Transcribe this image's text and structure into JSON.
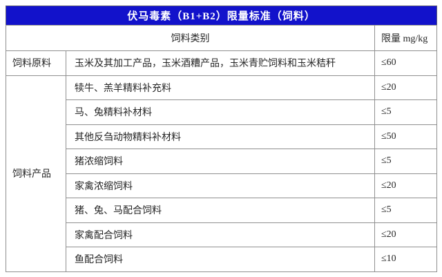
{
  "title": "伏马毒素（B1+B2）限量标准（饲料）",
  "colors": {
    "title_bg": "#1212cb",
    "title_text": "#ffffff",
    "border_inner": "#8f8f8f",
    "border_outer": "#6e6e6e",
    "body_text": "#262626"
  },
  "table": {
    "header": {
      "category": "饲料类别",
      "limit": "限量 mg/kg"
    },
    "groups": [
      {
        "group": "饲料原料",
        "rows": [
          {
            "item": "玉米及其加工产品，玉米酒糟产品，玉米青贮饲料和玉米秸秆",
            "limit": "≤60"
          }
        ]
      },
      {
        "group": "饲料产品",
        "rows": [
          {
            "item": "犊牛、羔羊精料补充料",
            "limit": "≤20"
          },
          {
            "item": "马、兔精料补材料",
            "limit": "≤5"
          },
          {
            "item": "其他反刍动物精料补材料",
            "limit": "≤50"
          },
          {
            "item": "猪浓缩饲料",
            "limit": "≤5"
          },
          {
            "item": "家禽浓缩饲料",
            "limit": "≤20"
          },
          {
            "item": "猪、兔、马配合饲料",
            "limit": "≤5"
          },
          {
            "item": "家禽配合饲料",
            "limit": "≤20"
          },
          {
            "item": "鱼配合饲料",
            "limit": "≤10"
          }
        ]
      }
    ]
  }
}
